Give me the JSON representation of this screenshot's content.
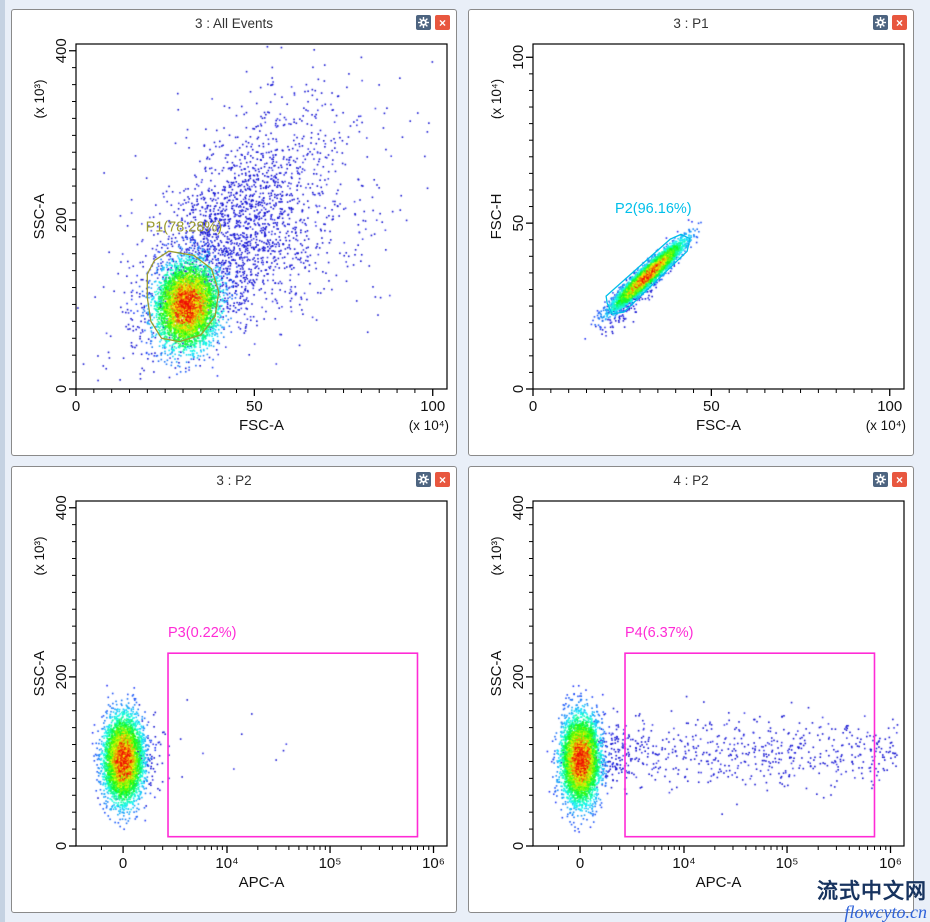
{
  "page": {
    "background": "#e9eff8"
  },
  "icons": {
    "close_glyph": "×",
    "gear_name": "settings",
    "close_name": "close"
  },
  "watermark": {
    "line1": "流式中文网",
    "line2": "flowcyto.cn"
  },
  "chart_data": [
    {
      "type": "scatter",
      "title": "3 : All Events",
      "xlabel": "FSC-A",
      "ylabel": "SSC-A",
      "x_multiplier": "(x 10⁴)",
      "y_multiplier": "(x 10³)",
      "x_scale": "linear",
      "xlim": [
        0,
        104
      ],
      "ylim": [
        0,
        408
      ],
      "x_major": [
        {
          "v": 0,
          "label": "0"
        },
        {
          "v": 50,
          "label": "50"
        },
        {
          "v": 100,
          "label": "100"
        }
      ],
      "x_minor": [
        5,
        10,
        15,
        20,
        25,
        30,
        35,
        40,
        45,
        55,
        60,
        65,
        70,
        75,
        80,
        85,
        90,
        95
      ],
      "y_major": [
        {
          "v": 0,
          "label": "0"
        },
        {
          "v": 200,
          "label": "200"
        },
        {
          "v": 400,
          "label": "400"
        }
      ],
      "y_minor": [
        20,
        40,
        60,
        80,
        100,
        120,
        140,
        160,
        180,
        220,
        240,
        260,
        280,
        300,
        320,
        340,
        360,
        380
      ],
      "clusters": [
        {
          "kind": "gauss",
          "n": 1600,
          "cx": 42,
          "cy": 185,
          "sx": 13,
          "sy": 50,
          "slope": 3.6,
          "density": false
        },
        {
          "kind": "gauss",
          "n": 500,
          "cx": 52,
          "cy": 150,
          "sx": 16,
          "sy": 45,
          "slope": 1.2,
          "density": false
        },
        {
          "kind": "gauss",
          "n": 280,
          "cx": 55,
          "cy": 250,
          "sx": 20,
          "sy": 70,
          "slope": 2.0,
          "density": false
        },
        {
          "kind": "gauss",
          "n": 4300,
          "cx": 31,
          "cy": 100,
          "sx": 4.3,
          "sy": 25,
          "slope": 0.5,
          "density": true
        }
      ],
      "gate": {
        "name": "P1",
        "label": "P1(78.28%)",
        "color": "#9b9b2e",
        "shape": "polygon",
        "points": [
          [
            26,
            163
          ],
          [
            33,
            158
          ],
          [
            38,
            142
          ],
          [
            40,
            115
          ],
          [
            39,
            86
          ],
          [
            35,
            64
          ],
          [
            29,
            56
          ],
          [
            24,
            60
          ],
          [
            21,
            80
          ],
          [
            20,
            108
          ],
          [
            20,
            136
          ],
          [
            22,
            152
          ]
        ],
        "label_pos": [
          19.5,
          186
        ]
      }
    },
    {
      "type": "scatter",
      "title": "3 : P1",
      "xlabel": "FSC-A",
      "ylabel": "FSC-H",
      "x_multiplier": "(x 10⁴)",
      "y_multiplier": "(x 10⁴)",
      "x_scale": "linear",
      "xlim": [
        0,
        104
      ],
      "ylim": [
        0,
        104
      ],
      "x_major": [
        {
          "v": 0,
          "label": "0"
        },
        {
          "v": 50,
          "label": "50"
        },
        {
          "v": 100,
          "label": "100"
        }
      ],
      "x_minor": [
        5,
        10,
        15,
        20,
        25,
        30,
        35,
        40,
        45,
        55,
        60,
        65,
        70,
        75,
        80,
        85,
        90,
        95
      ],
      "y_major": [
        {
          "v": 0,
          "label": "0"
        },
        {
          "v": 50,
          "label": "50"
        },
        {
          "v": 100,
          "label": "100"
        }
      ],
      "y_minor": [
        5,
        10,
        15,
        20,
        25,
        30,
        35,
        40,
        45,
        55,
        60,
        65,
        70,
        75,
        80,
        85,
        90,
        95
      ],
      "clusters": [
        {
          "kind": "gauss",
          "n": 260,
          "cx": 28,
          "cy": 29,
          "sx": 4.5,
          "sy": 2.8,
          "slope": 0.95,
          "density": false
        },
        {
          "kind": "gauss",
          "n": 4300,
          "cx": 32,
          "cy": 34.5,
          "sx": 4.8,
          "sy": 1.6,
          "slope": 0.97,
          "density": true
        }
      ],
      "gate": {
        "name": "P2",
        "label": "P2(96.16%)",
        "color": "#00bfea",
        "shape": "polygon",
        "points": [
          [
            20.8,
            25.8
          ],
          [
            22.2,
            22.6
          ],
          [
            25.5,
            23.2
          ],
          [
            43.2,
            41.5
          ],
          [
            44.0,
            45.3
          ],
          [
            41.5,
            46.6
          ],
          [
            38.5,
            45.2
          ],
          [
            20.5,
            28.0
          ]
        ],
        "label_pos": [
          23,
          53
        ]
      }
    },
    {
      "type": "scatter",
      "title": "3 : P2",
      "xlabel": "APC-A",
      "ylabel": "SSC-A",
      "x_multiplier": "",
      "y_multiplier": "(x 10³)",
      "x_scale": "symlog",
      "symlog_s": 2000,
      "xlim": [
        -2500,
        1350000
      ],
      "ylim": [
        0,
        408
      ],
      "x_major": [
        {
          "v": 0,
          "label": "0"
        },
        {
          "v": 10000,
          "label": "10⁴"
        },
        {
          "v": 100000,
          "label": "10⁵"
        },
        {
          "v": 1000000,
          "label": "10⁶"
        }
      ],
      "x_minor": [
        -1000,
        1000,
        2000,
        3000,
        4000,
        5000,
        6000,
        7000,
        8000,
        9000,
        20000,
        30000,
        40000,
        50000,
        60000,
        70000,
        80000,
        90000,
        200000,
        300000,
        400000,
        500000,
        600000,
        700000,
        800000,
        900000
      ],
      "y_major": [
        {
          "v": 0,
          "label": "0"
        },
        {
          "v": 200,
          "label": "200"
        },
        {
          "v": 400,
          "label": "400"
        }
      ],
      "y_minor": [
        20,
        40,
        60,
        80,
        100,
        120,
        140,
        160,
        180,
        220,
        240,
        260,
        280,
        300,
        320,
        340,
        360,
        380
      ],
      "clusters": [
        {
          "kind": "gauss",
          "n": 110,
          "cx": 700,
          "cy": 108,
          "sx": 800,
          "sy": 24,
          "slope": 0,
          "density": false
        },
        {
          "kind": "loguniX",
          "n": 10,
          "x0": 2600,
          "x1": 40000,
          "cy": 115,
          "sy": 28
        },
        {
          "kind": "gauss",
          "n": 4300,
          "cx": -20,
          "cy": 103,
          "sx": 430,
          "sy": 25,
          "slope": 0,
          "density": true
        }
      ],
      "gate": {
        "name": "P3",
        "label": "P3(0.22%)",
        "color": "#ff2bd6",
        "shape": "rect",
        "rect": {
          "x0": 2350,
          "y0": 11,
          "x1": 700000,
          "y1": 228
        },
        "label_pos": [
          2350,
          247
        ]
      }
    },
    {
      "type": "scatter",
      "title": "4 : P2",
      "xlabel": "APC-A",
      "ylabel": "SSC-A",
      "x_multiplier": "",
      "y_multiplier": "(x 10³)",
      "x_scale": "symlog",
      "symlog_s": 2000,
      "xlim": [
        -2500,
        1350000
      ],
      "ylim": [
        0,
        408
      ],
      "x_major": [
        {
          "v": 0,
          "label": "0"
        },
        {
          "v": 10000,
          "label": "10⁴"
        },
        {
          "v": 100000,
          "label": "10⁵"
        },
        {
          "v": 1000000,
          "label": "10⁶"
        }
      ],
      "x_minor": [
        -1000,
        1000,
        2000,
        3000,
        4000,
        5000,
        6000,
        7000,
        8000,
        9000,
        20000,
        30000,
        40000,
        50000,
        60000,
        70000,
        80000,
        90000,
        200000,
        300000,
        400000,
        500000,
        600000,
        700000,
        800000,
        900000
      ],
      "y_major": [
        {
          "v": 0,
          "label": "0"
        },
        {
          "v": 200,
          "label": "200"
        },
        {
          "v": 400,
          "label": "400"
        }
      ],
      "y_minor": [
        20,
        40,
        60,
        80,
        100,
        120,
        140,
        160,
        180,
        220,
        240,
        260,
        280,
        300,
        320,
        340,
        360,
        380
      ],
      "clusters": [
        {
          "kind": "gauss",
          "n": 160,
          "cx": 1200,
          "cy": 108,
          "sx": 900,
          "sy": 22,
          "slope": 0,
          "density": false
        },
        {
          "kind": "loguniX",
          "n": 560,
          "x0": 1500,
          "x1": 1150000,
          "cy": 112,
          "sy": 21
        },
        {
          "kind": "gauss",
          "n": 4300,
          "cx": -10,
          "cy": 103,
          "sx": 430,
          "sy": 25,
          "slope": 0,
          "density": true
        }
      ],
      "gate": {
        "name": "P4",
        "label": "P4(6.37%)",
        "color": "#ff2bd6",
        "shape": "rect",
        "rect": {
          "x0": 2350,
          "y0": 11,
          "x1": 700000,
          "y1": 228
        },
        "label_pos": [
          2350,
          247
        ]
      }
    }
  ]
}
